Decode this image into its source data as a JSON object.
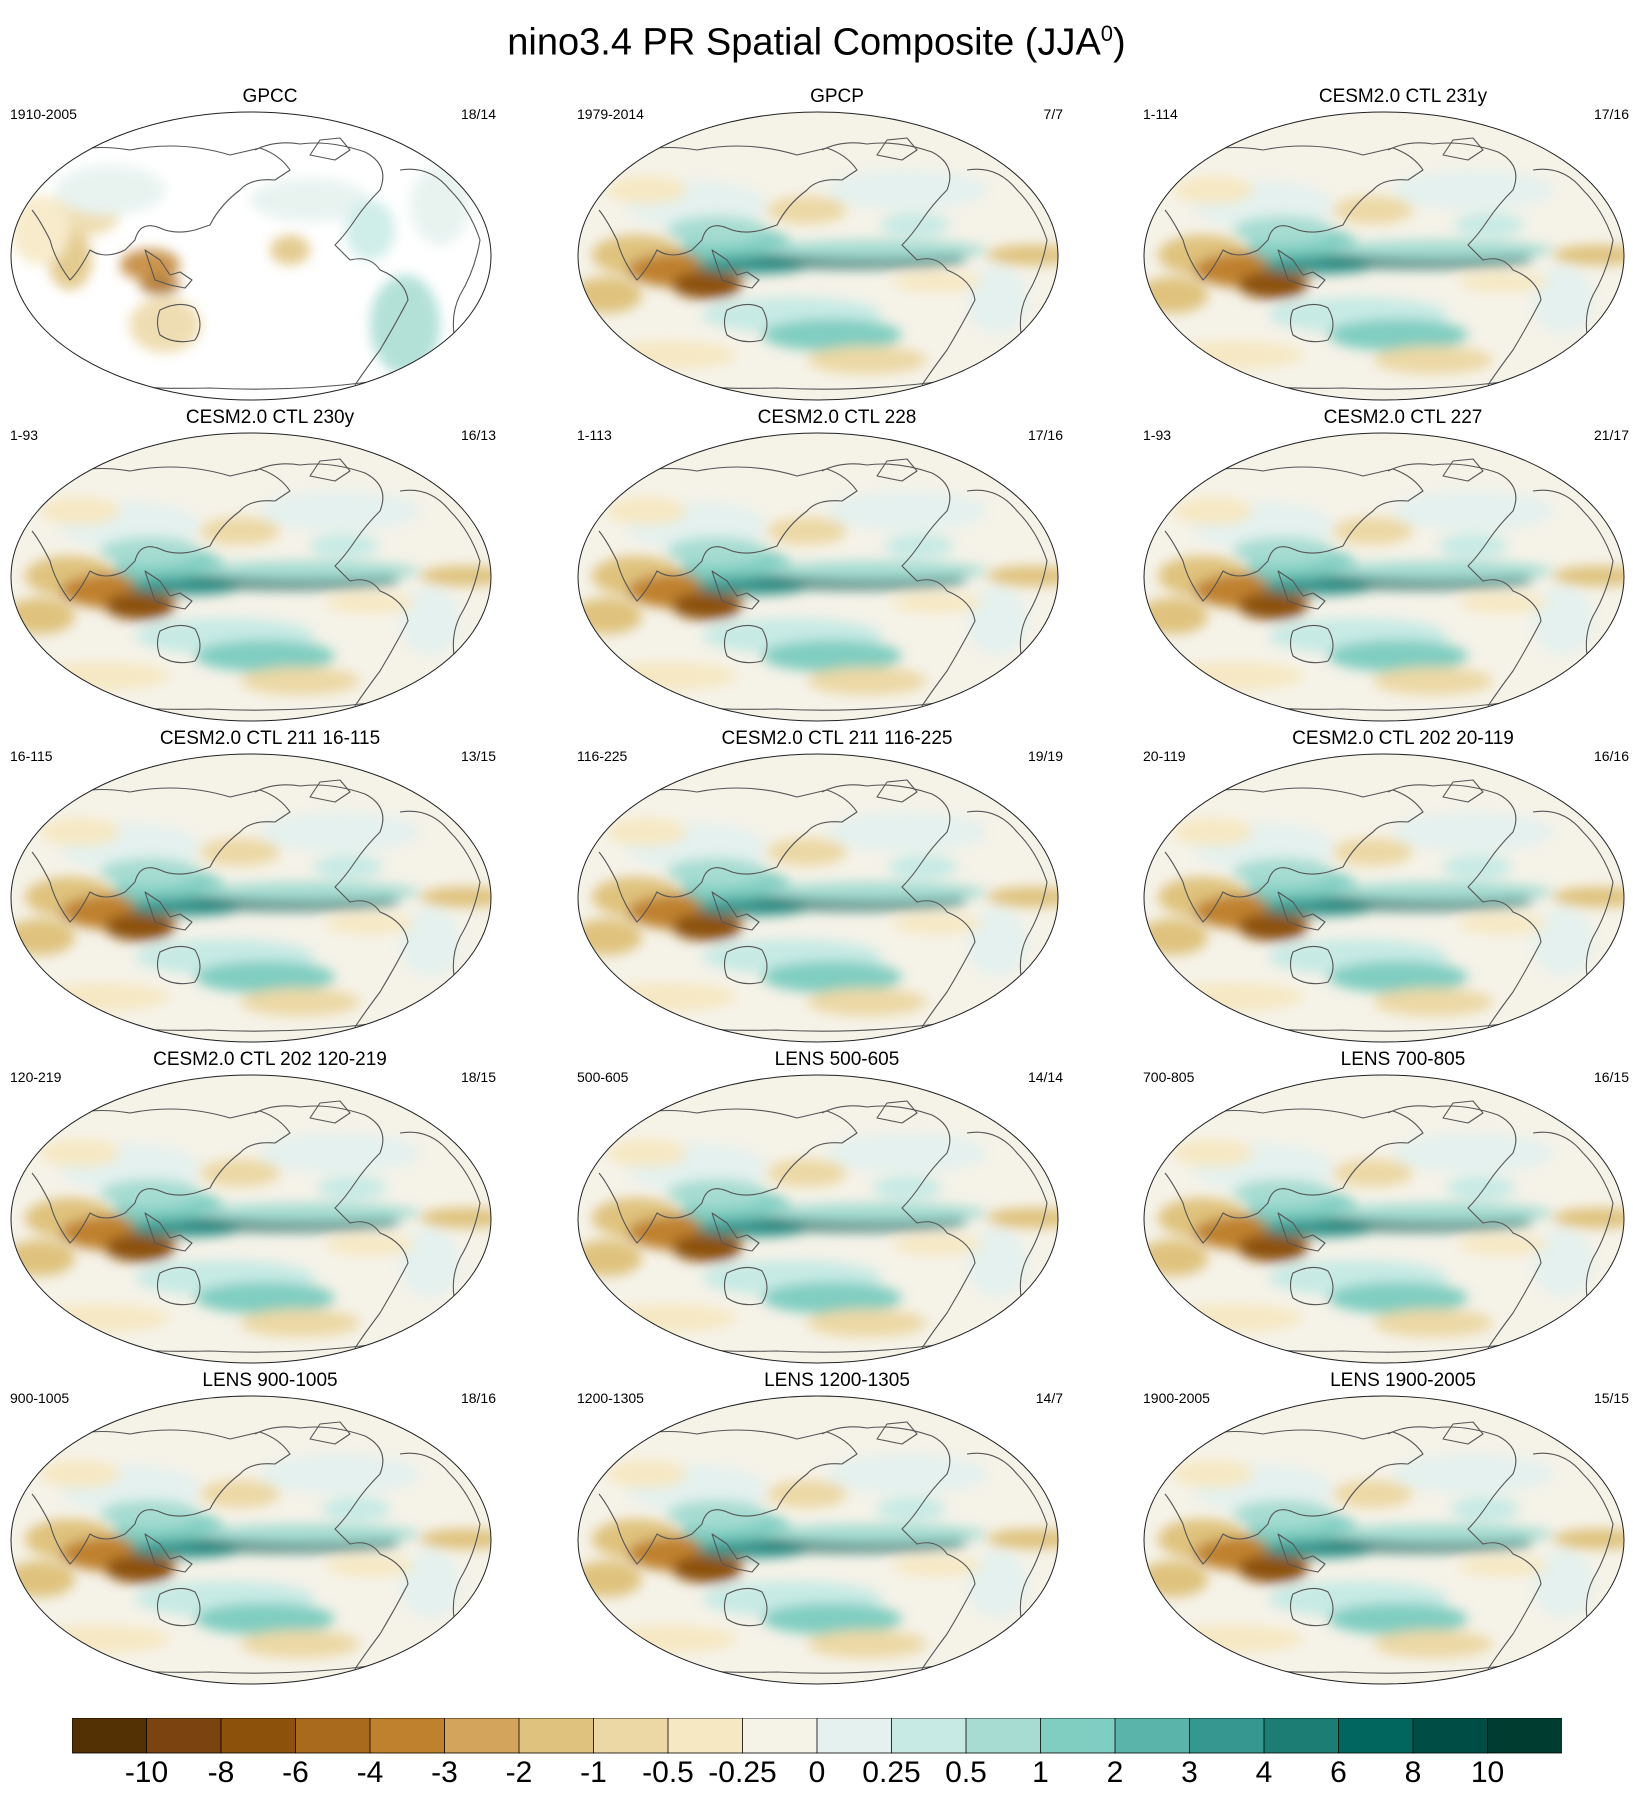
{
  "title": "nino3.4 PR Spatial Composite (JJA",
  "title_sup": "0",
  "title_close": ")",
  "panels": [
    {
      "title": "GPCC",
      "period": "1910-2005",
      "count": "18/14",
      "land_only": true
    },
    {
      "title": "GPCP",
      "period": "1979-2014",
      "count": "7/7",
      "land_only": false
    },
    {
      "title": "CESM2.0 CTL 231y",
      "period": "1-114",
      "count": "17/16",
      "land_only": false
    },
    {
      "title": "CESM2.0 CTL 230y",
      "period": "1-93",
      "count": "16/13",
      "land_only": false
    },
    {
      "title": "CESM2.0 CTL 228",
      "period": "1-113",
      "count": "17/16",
      "land_only": false
    },
    {
      "title": "CESM2.0 CTL 227",
      "period": "1-93",
      "count": "21/17",
      "land_only": false
    },
    {
      "title": "CESM2.0 CTL 211 16-115",
      "period": "16-115",
      "count": "13/15",
      "land_only": false
    },
    {
      "title": "CESM2.0 CTL 211 116-225",
      "period": "116-225",
      "count": "19/19",
      "land_only": false
    },
    {
      "title": "CESM2.0 CTL 202 20-119",
      "period": "20-119",
      "count": "16/16",
      "land_only": false
    },
    {
      "title": "CESM2.0 CTL 202 120-219",
      "period": "120-219",
      "count": "18/15",
      "land_only": false
    },
    {
      "title": "LENS 500-605",
      "period": "500-605",
      "count": "14/14",
      "land_only": false
    },
    {
      "title": "LENS 700-805",
      "period": "700-805",
      "count": "16/15",
      "land_only": false
    },
    {
      "title": "LENS 900-1005",
      "period": "900-1005",
      "count": "18/16",
      "land_only": false
    },
    {
      "title": "LENS 1200-1305",
      "period": "1200-1305",
      "count": "14/7",
      "land_only": false
    },
    {
      "title": "LENS 1900-2005",
      "period": "1900-2005",
      "count": "15/15",
      "land_only": false
    }
  ],
  "colorbar": {
    "labels": [
      "-10",
      "-8",
      "-6",
      "-4",
      "-3",
      "-2",
      "-1",
      "-0.5",
      "-0.25",
      "0",
      "0.25",
      "0.5",
      "1",
      "2",
      "3",
      "4",
      "6",
      "8",
      "10"
    ],
    "colors": [
      "#543005",
      "#7a4310",
      "#8c510a",
      "#a96a1e",
      "#bf812d",
      "#d2a45c",
      "#dfc27d",
      "#ecd8a5",
      "#f6e8c3",
      "#f5f2e8",
      "#e4f1ee",
      "#c7eae5",
      "#a6dcd2",
      "#80cdc1",
      "#5ab4a9",
      "#35978f",
      "#1b7d74",
      "#01665e",
      "#004d45",
      "#003c30"
    ]
  }
}
